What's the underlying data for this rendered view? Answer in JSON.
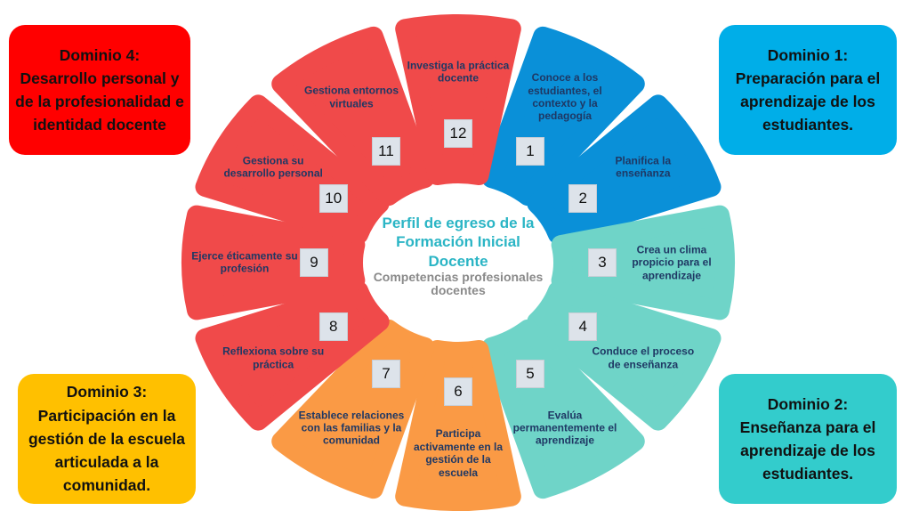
{
  "center": {
    "title": "Perfil de egreso de la Formación Inicial Docente",
    "subtitle": "Competencias profesionales docentes"
  },
  "domains": [
    {
      "label": "Dominio 1:\nPreparación para el aprendizaje de los estudiantes.",
      "color": "#00aee8"
    },
    {
      "label": "Dominio 2:\nEnseñanza para el aprendizaje de los estudiantes.",
      "color": "#33cccc"
    },
    {
      "label": "Dominio 3:\nParticipación en la gestión de la escuela articulada a la comunidad.",
      "color": "#ffc000"
    },
    {
      "label": "Dominio 4:\nDesarrollo personal y de la profesionalidad e identidad docente",
      "color": "#ff0000"
    }
  ],
  "colors": {
    "blue": "#0a90d8",
    "teal": "#6fd4c8",
    "orange": "#fa9a45",
    "red": "#f04a4a"
  },
  "competencies": [
    {
      "number": "1",
      "label": "Conoce a los estudiantes, el contexto y la pedagogía",
      "group": "blue"
    },
    {
      "number": "2",
      "label": "Planifica la enseñanza",
      "group": "blue"
    },
    {
      "number": "3",
      "label": "Crea un clima propicio para el aprendizaje",
      "group": "teal"
    },
    {
      "number": "4",
      "label": "Conduce el proceso de enseñanza",
      "group": "teal"
    },
    {
      "number": "5",
      "label": "Evalúa permanentemente el aprendizaje",
      "group": "teal"
    },
    {
      "number": "6",
      "label": "Participa activamente en la gestión de la escuela",
      "group": "orange"
    },
    {
      "number": "7",
      "label": "Establece relaciones con las familias y la comunidad",
      "group": "orange"
    },
    {
      "number": "8",
      "label": "Reflexiona sobre su práctica",
      "group": "red"
    },
    {
      "number": "9",
      "label": "Ejerce éticamente su profesión",
      "group": "red"
    },
    {
      "number": "10",
      "label": "Gestiona su desarrollo personal",
      "group": "red"
    },
    {
      "number": "11",
      "label": "Gestiona entornos virtuales",
      "group": "red"
    },
    {
      "number": "12",
      "label": "Investiga la práctica docente",
      "group": "red"
    }
  ]
}
